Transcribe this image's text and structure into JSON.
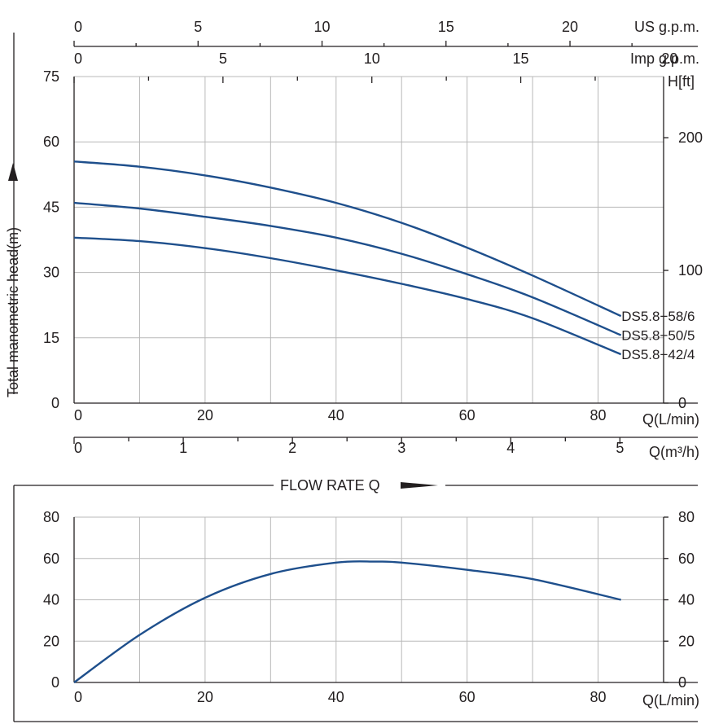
{
  "chart_data": [
    {
      "type": "line",
      "ylabel": "Total manometric head(m)",
      "ylim": [
        0,
        75
      ],
      "y_ticks": [
        "75",
        "60",
        "45",
        "30",
        "15",
        "0"
      ],
      "xlabel": "Q(L/min)",
      "xlim": [
        0,
        90
      ],
      "x_ticks": [
        "0",
        "20",
        "40",
        "60",
        "80"
      ],
      "secondary_x_axes": [
        {
          "label": "Q(m³/h)",
          "ticks": [
            "0",
            "1",
            "2",
            "3",
            "4",
            "5"
          ],
          "values": [
            0,
            1,
            2,
            3,
            4,
            5
          ]
        },
        {
          "label": "US g.p.m.",
          "ticks": [
            "0",
            "5",
            "10",
            "15",
            "20"
          ],
          "values": [
            0,
            5,
            10,
            15,
            20
          ]
        },
        {
          "label": "Imp g.p.m.",
          "ticks": [
            "0",
            "5",
            "10",
            "15",
            "20"
          ],
          "values": [
            0,
            5,
            10,
            15,
            20
          ]
        }
      ],
      "secondary_y_axis": {
        "label": "H[ft]",
        "ticks": [
          "200",
          "100",
          "0"
        ],
        "values": [
          200,
          100,
          0
        ]
      },
      "grid": true,
      "series": [
        {
          "name": "DS5.8−58/6",
          "x": [
            0,
            10,
            20,
            30,
            40,
            50,
            60,
            70,
            83.5
          ],
          "y": [
            55.5,
            54.3,
            52.3,
            49.5,
            46,
            41.4,
            35.7,
            29.3,
            20
          ]
        },
        {
          "name": "DS5.8−50/5",
          "x": [
            0,
            10,
            20,
            30,
            40,
            50,
            60,
            70,
            83.5
          ],
          "y": [
            46,
            44.7,
            42.8,
            40.7,
            38,
            34.3,
            29.6,
            24.3,
            15.6
          ]
        },
        {
          "name": "DS5.8−42/4",
          "x": [
            0,
            10,
            20,
            30,
            40,
            50,
            60,
            70,
            83.5
          ],
          "y": [
            38,
            37.2,
            35.6,
            33.3,
            30.5,
            27.4,
            23.9,
            19.5,
            11.2
          ]
        }
      ]
    },
    {
      "type": "line",
      "ylim": [
        0,
        80
      ],
      "y_ticks": [
        "80",
        "60",
        "40",
        "20",
        "0"
      ],
      "xlabel": "Q(L/min)",
      "xlim": [
        0,
        90
      ],
      "x_ticks": [
        "0",
        "20",
        "40",
        "60",
        "80"
      ],
      "grid": true,
      "series": [
        {
          "x": [
            0,
            10,
            20,
            30,
            40,
            46,
            50,
            60,
            70,
            83.5
          ],
          "y": [
            0,
            23,
            41,
            52.5,
            58,
            58.5,
            58,
            54.5,
            50,
            40
          ]
        }
      ]
    }
  ],
  "flow_label": "FLOW RATE Q",
  "colors": {
    "curve": "#1e4f8c",
    "grid": "#b8b8b8",
    "text": "#231f20"
  }
}
